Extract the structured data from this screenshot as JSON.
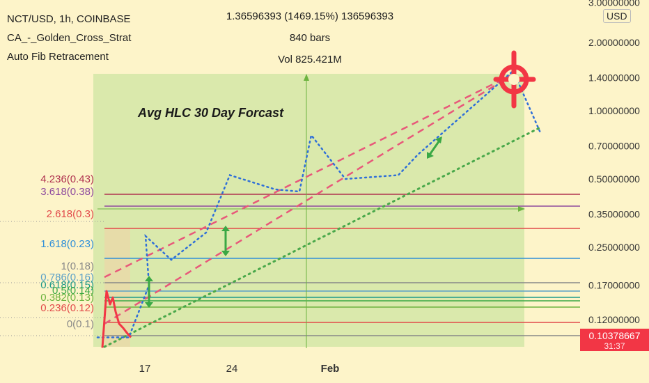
{
  "header": {
    "symbol": "NCT/USD, 1h, COINBASE",
    "indicator_1": "CA_-_Golden_Cross_Strat",
    "indicator_2": "Auto Fib Retracement"
  },
  "measure": {
    "change": "1.36596393 (1469.15%) 136596393",
    "bars": "840 bars",
    "volume": "Vol 825.421M"
  },
  "annotation_text": "Avg HLC 30 Day Forcast",
  "currency_label": "USD",
  "last_price": {
    "value": "0.10378667",
    "countdown": "31:37",
    "color": "#f23645"
  },
  "chart_data": {
    "type": "line",
    "scale": "log",
    "y_axis_ticks": [
      "3.00000000",
      "2.00000000",
      "1.40000000",
      "1.00000000",
      "0.70000000",
      "0.50000000",
      "0.35000000",
      "0.25000000",
      "0.17000000",
      "0.12000000"
    ],
    "x_axis_ticks": [
      "17",
      "24",
      "Feb"
    ],
    "fib_levels": [
      {
        "label": "4.236(0.43)",
        "value": 0.43,
        "color": "#b0324f"
      },
      {
        "label": "3.618(0.38)",
        "value": 0.38,
        "color": "#8e4a9e"
      },
      {
        "label": "2.618(0.3)",
        "value": 0.3,
        "color": "#e24a4a"
      },
      {
        "label": "1.618(0.23)",
        "value": 0.23,
        "color": "#2f8fd8"
      },
      {
        "label": "1(0.18)",
        "value": 0.18,
        "color": "#888888"
      },
      {
        "label": "0.786(0.16)",
        "value": 0.16,
        "color": "#5aa0c8"
      },
      {
        "label": "0.618(0.15)",
        "value": 0.15,
        "color": "#1f9a8a"
      },
      {
        "label": "0.5(0.14)",
        "value": 0.14,
        "color": "#3aa845"
      },
      {
        "label": "0.382(0.13)",
        "value": 0.13,
        "color": "#6cb33f"
      },
      {
        "label": "0.236(0.12)",
        "value": 0.12,
        "color": "#e24a4a"
      },
      {
        "label": "0(0.1)",
        "value": 0.1,
        "color": "#888888"
      }
    ],
    "series": [
      {
        "values": [
          0.09,
          0.16,
          0.14,
          0.15,
          0.13,
          0.115,
          0.11,
          0.105,
          0.1
        ],
        "color": "#f23645"
      },
      {
        "values": [
          0.1,
          0.1,
          0.1,
          0.17,
          0.28,
          0.22,
          0.29,
          0.52,
          0.45,
          0.44,
          0.78,
          0.5,
          0.52,
          0.64,
          1.5,
          0.8
        ],
        "color": "#2f6fd8"
      }
    ]
  }
}
